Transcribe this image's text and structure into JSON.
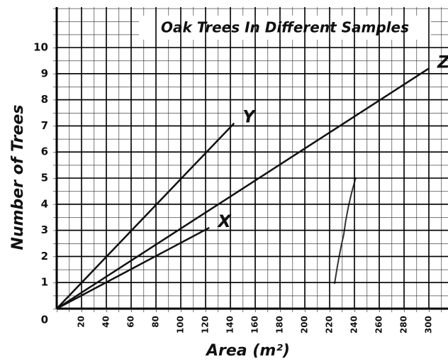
{
  "chart_data": {
    "type": "line",
    "title": "Oak Trees In Different Samples",
    "x_label": "Area (m²)",
    "y_label": "Number of Trees",
    "series": [
      {
        "name": "Y",
        "color": "#111111",
        "x": [
          0,
          143
        ],
        "values": [
          0,
          7.1
        ]
      },
      {
        "name": "Z",
        "color": "#111111",
        "x": [
          0,
          300
        ],
        "values": [
          0,
          9.2
        ]
      },
      {
        "name": "X",
        "color": "#111111",
        "x": [
          0,
          123
        ],
        "values": [
          0,
          3.1
        ]
      }
    ],
    "xlim": [
      0,
      300
    ],
    "ylim": [
      0,
      10
    ],
    "xticks": [
      20,
      40,
      60,
      80,
      100,
      120,
      140,
      160,
      180,
      200,
      220,
      240,
      260,
      280,
      300
    ],
    "yticks": [
      0,
      1,
      2,
      3,
      4,
      5,
      6,
      7,
      8,
      9,
      10
    ],
    "grid": true
  }
}
